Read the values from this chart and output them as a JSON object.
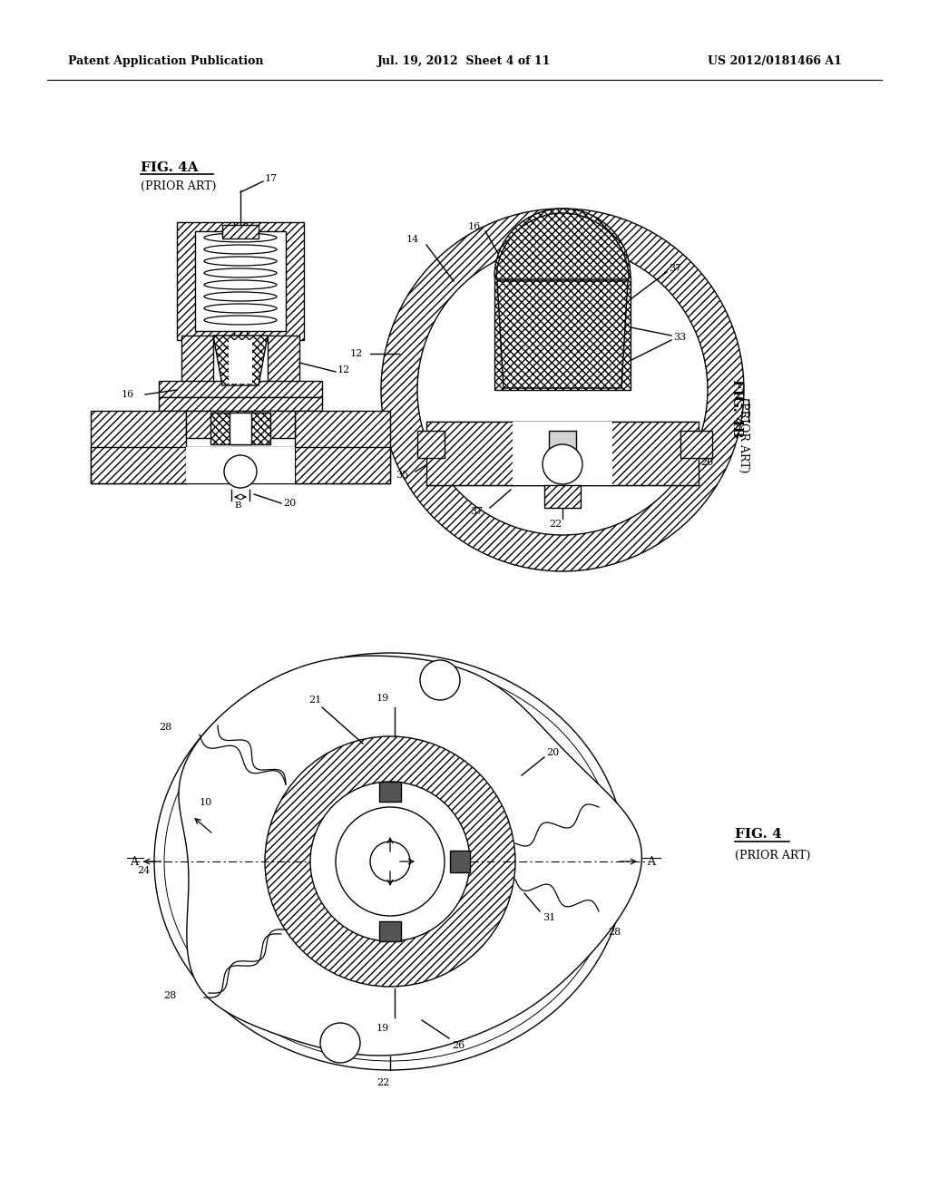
{
  "header_left": "Patent Application Publication",
  "header_middle": "Jul. 19, 2012  Sheet 4 of 11",
  "header_right": "US 2012/0181466 A1",
  "bg_color": "#ffffff"
}
